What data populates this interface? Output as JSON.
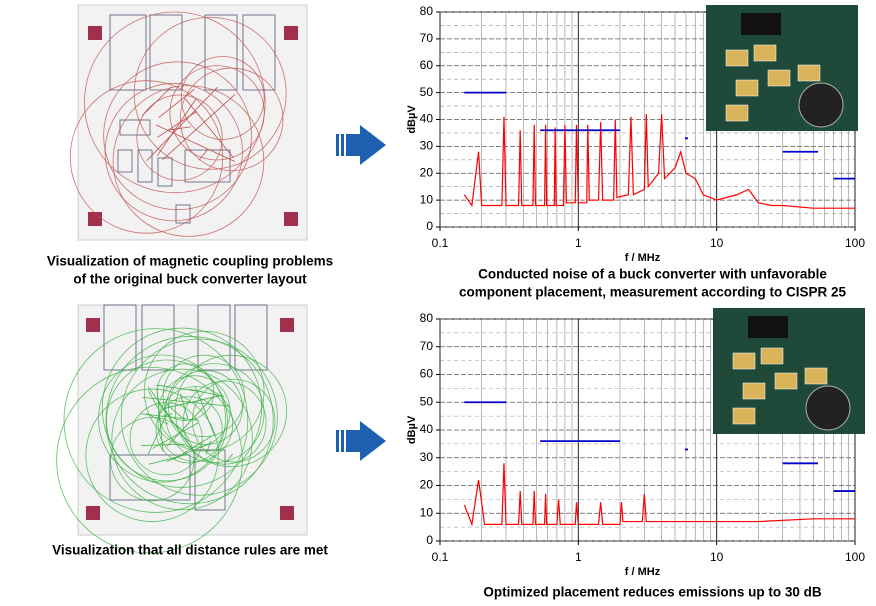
{
  "layouts": [
    {
      "caption": [
        "Visualization of magnetic coupling problems",
        "of the original buck converter layout"
      ],
      "color": "#c0504d"
    },
    {
      "caption": [
        "Visualization that all distance rules are met"
      ],
      "color": "#3cb043"
    }
  ],
  "chart_data": [
    {
      "type": "line",
      "caption": [
        "Conducted noise of a buck converter with unfavorable",
        "component placement, measurement according to CISPR 25"
      ],
      "xlabel": "f / MHz",
      "ylabel": "dBµV",
      "xscale": "log",
      "grid": true,
      "xlim": [
        0.1,
        100
      ],
      "xticks": [
        0.1,
        1,
        10,
        100
      ],
      "ylim": [
        0,
        80
      ],
      "yticks": [
        0,
        10,
        20,
        30,
        40,
        50,
        60,
        70,
        80
      ],
      "series": [
        {
          "color": "#ff0000",
          "x": [
            0.15,
            0.17,
            0.19,
            0.2,
            0.28,
            0.29,
            0.3,
            0.37,
            0.38,
            0.39,
            0.47,
            0.48,
            0.49,
            0.57,
            0.58,
            0.59,
            0.67,
            0.68,
            0.69,
            0.78,
            0.8,
            0.82,
            0.95,
            0.97,
            1.0,
            1.15,
            1.17,
            1.2,
            1.4,
            1.45,
            1.5,
            1.8,
            1.85,
            1.9,
            2.3,
            2.4,
            2.5,
            3,
            3.1,
            3.2,
            3.8,
            4,
            4.2,
            5,
            5.5,
            6,
            7,
            8,
            10,
            14,
            17,
            20,
            25,
            30,
            50,
            100
          ],
          "values": [
            12,
            8,
            28,
            8,
            8,
            41,
            8,
            8,
            36,
            8,
            8,
            38,
            8,
            8,
            38,
            8,
            8,
            37,
            8,
            8,
            38,
            9,
            9,
            38,
            9,
            9,
            38,
            10,
            10,
            39,
            10,
            10,
            40,
            11,
            12,
            41,
            12,
            14,
            42,
            15,
            20,
            42,
            18,
            22,
            28,
            20,
            18,
            12,
            10,
            12,
            14,
            9,
            8,
            8,
            7,
            7
          ]
        },
        {
          "color": "#0000cc",
          "x": [
            0.15,
            0.3,
            null,
            0.53,
            2,
            null,
            5.9,
            6.2,
            null,
            30,
            54,
            null,
            70,
            100
          ],
          "values": [
            50,
            50,
            null,
            36,
            36,
            null,
            33,
            33,
            null,
            28,
            28,
            null,
            18,
            18
          ]
        }
      ]
    },
    {
      "type": "line",
      "caption": [
        "Optimized placement reduces emissions up to 30 dB"
      ],
      "xlabel": "f / MHz",
      "ylabel": "dBµV",
      "xscale": "log",
      "grid": true,
      "xlim": [
        0.1,
        100
      ],
      "xticks": [
        0.1,
        1,
        10,
        100
      ],
      "ylim": [
        0,
        80
      ],
      "yticks": [
        0,
        10,
        20,
        30,
        40,
        50,
        60,
        70,
        80
      ],
      "series": [
        {
          "color": "#ff0000",
          "x": [
            0.15,
            0.17,
            0.19,
            0.21,
            0.28,
            0.29,
            0.3,
            0.37,
            0.38,
            0.39,
            0.47,
            0.48,
            0.49,
            0.57,
            0.58,
            0.59,
            0.7,
            0.72,
            0.74,
            0.95,
            0.97,
            1.0,
            1.4,
            1.45,
            1.5,
            2,
            2.05,
            2.1,
            2.9,
            3,
            3.1,
            5,
            10,
            20,
            50,
            100
          ],
          "values": [
            13,
            6,
            22,
            6,
            6,
            28,
            6,
            6,
            18,
            6,
            6,
            18,
            6,
            6,
            17,
            6,
            6,
            15,
            6,
            6,
            14,
            6,
            6,
            14,
            6,
            6,
            14,
            7,
            7,
            17,
            7,
            7,
            7,
            7,
            8,
            8
          ]
        },
        {
          "color": "#0000cc",
          "x": [
            0.15,
            0.3,
            null,
            0.53,
            2,
            null,
            5.9,
            6.2,
            null,
            30,
            54,
            null,
            70,
            100
          ],
          "values": [
            50,
            50,
            null,
            36,
            36,
            null,
            33,
            33,
            null,
            28,
            28,
            null,
            18,
            18
          ]
        }
      ]
    }
  ]
}
